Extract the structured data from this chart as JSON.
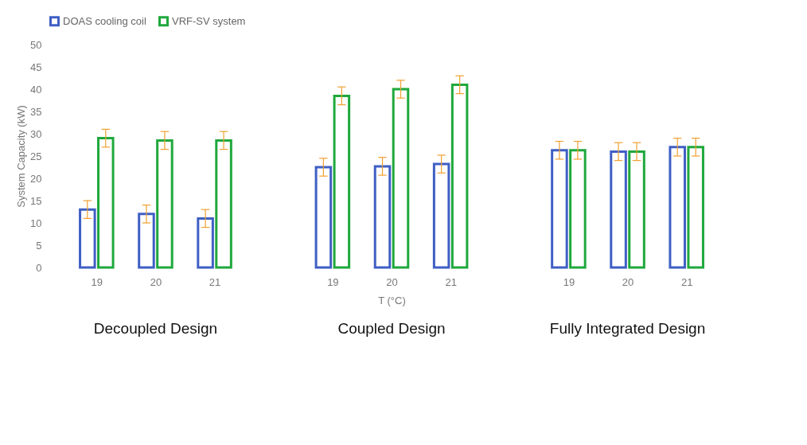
{
  "chart_data": {
    "type": "bar",
    "categories": [
      "19",
      "20",
      "21",
      "19",
      "20",
      "21",
      "19",
      "20",
      "21"
    ],
    "series": [
      {
        "name": "DOAS cooling coil",
        "color": "#3f5fc4",
        "values": [
          13,
          12,
          11,
          22.5,
          22.7,
          23.2,
          26.3,
          26,
          27
        ],
        "errors": [
          2,
          2,
          2,
          2,
          2,
          2,
          2,
          2,
          2
        ]
      },
      {
        "name": "VRF-SV system",
        "color": "#1fa83c",
        "values": [
          29,
          28.5,
          28.5,
          38.5,
          40,
          41,
          26.3,
          26,
          27
        ],
        "errors": [
          2,
          2,
          2,
          2,
          2,
          2,
          2,
          2,
          2
        ]
      }
    ],
    "ylabel": "System Capacity (kW)",
    "xlabel": "T (°C)",
    "ylim": [
      0,
      50
    ],
    "yticks": [
      0,
      5,
      10,
      15,
      20,
      25,
      30,
      35,
      40,
      45,
      50
    ],
    "annotations": [
      "Decoupled Design",
      "Coupled Design",
      "Fully Integrated Design"
    ],
    "legend": "top",
    "grid": false
  }
}
